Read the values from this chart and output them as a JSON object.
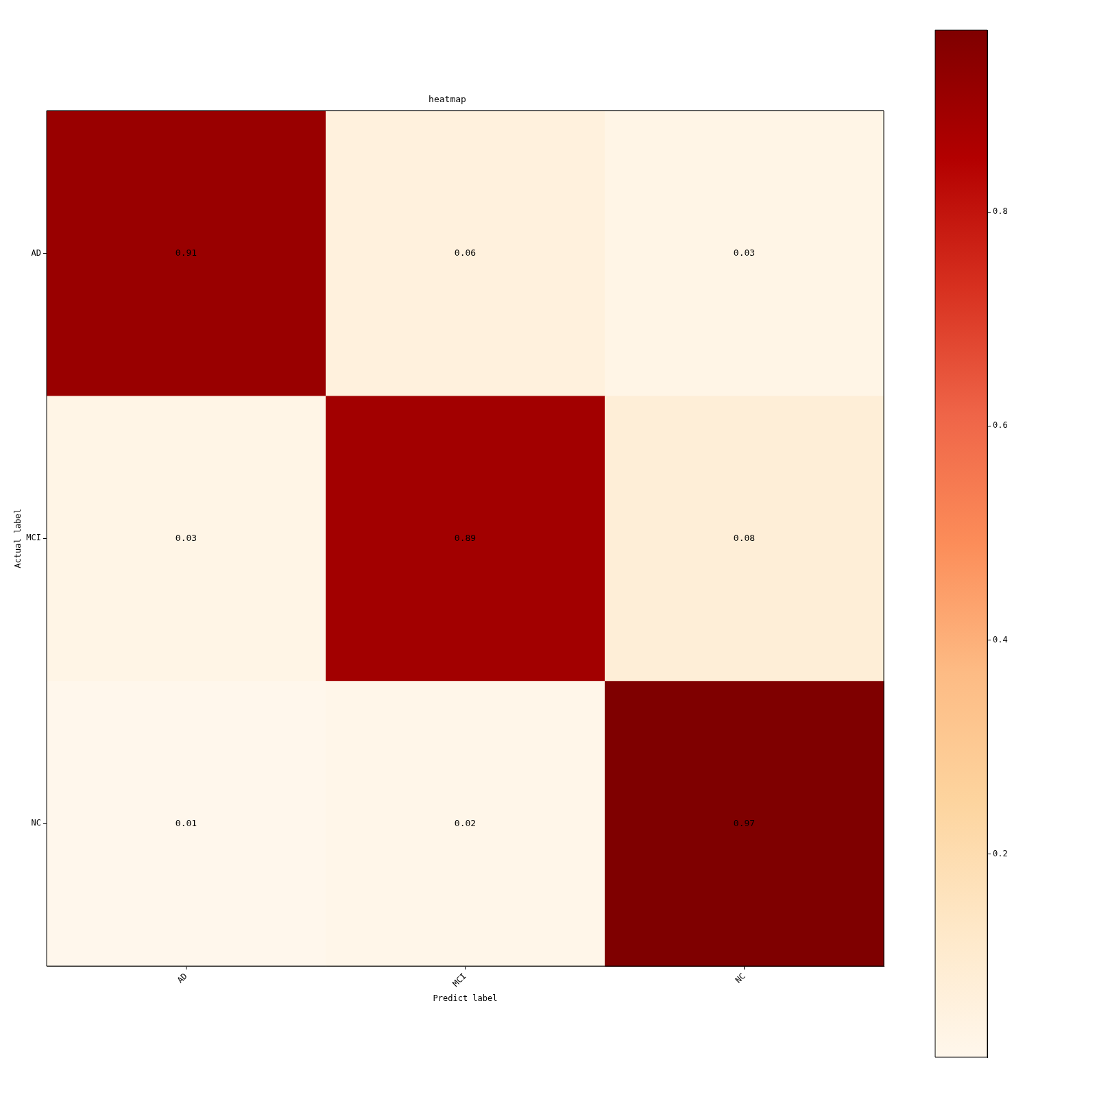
{
  "chart_data": {
    "type": "heatmap",
    "title": "heatmap",
    "xlabel": "Predict label",
    "ylabel": "Actual label",
    "categories": [
      "AD",
      "MCI",
      "NC"
    ],
    "y_categories": [
      "AD",
      "MCI",
      "NC"
    ],
    "cells": [
      [
        0.91,
        0.06,
        0.03
      ],
      [
        0.03,
        0.89,
        0.08
      ],
      [
        0.01,
        0.02,
        0.97
      ]
    ],
    "clim": [
      0.01,
      0.97
    ],
    "cticks": [
      0.2,
      0.4,
      0.6,
      0.8
    ],
    "data_labels": true
  }
}
